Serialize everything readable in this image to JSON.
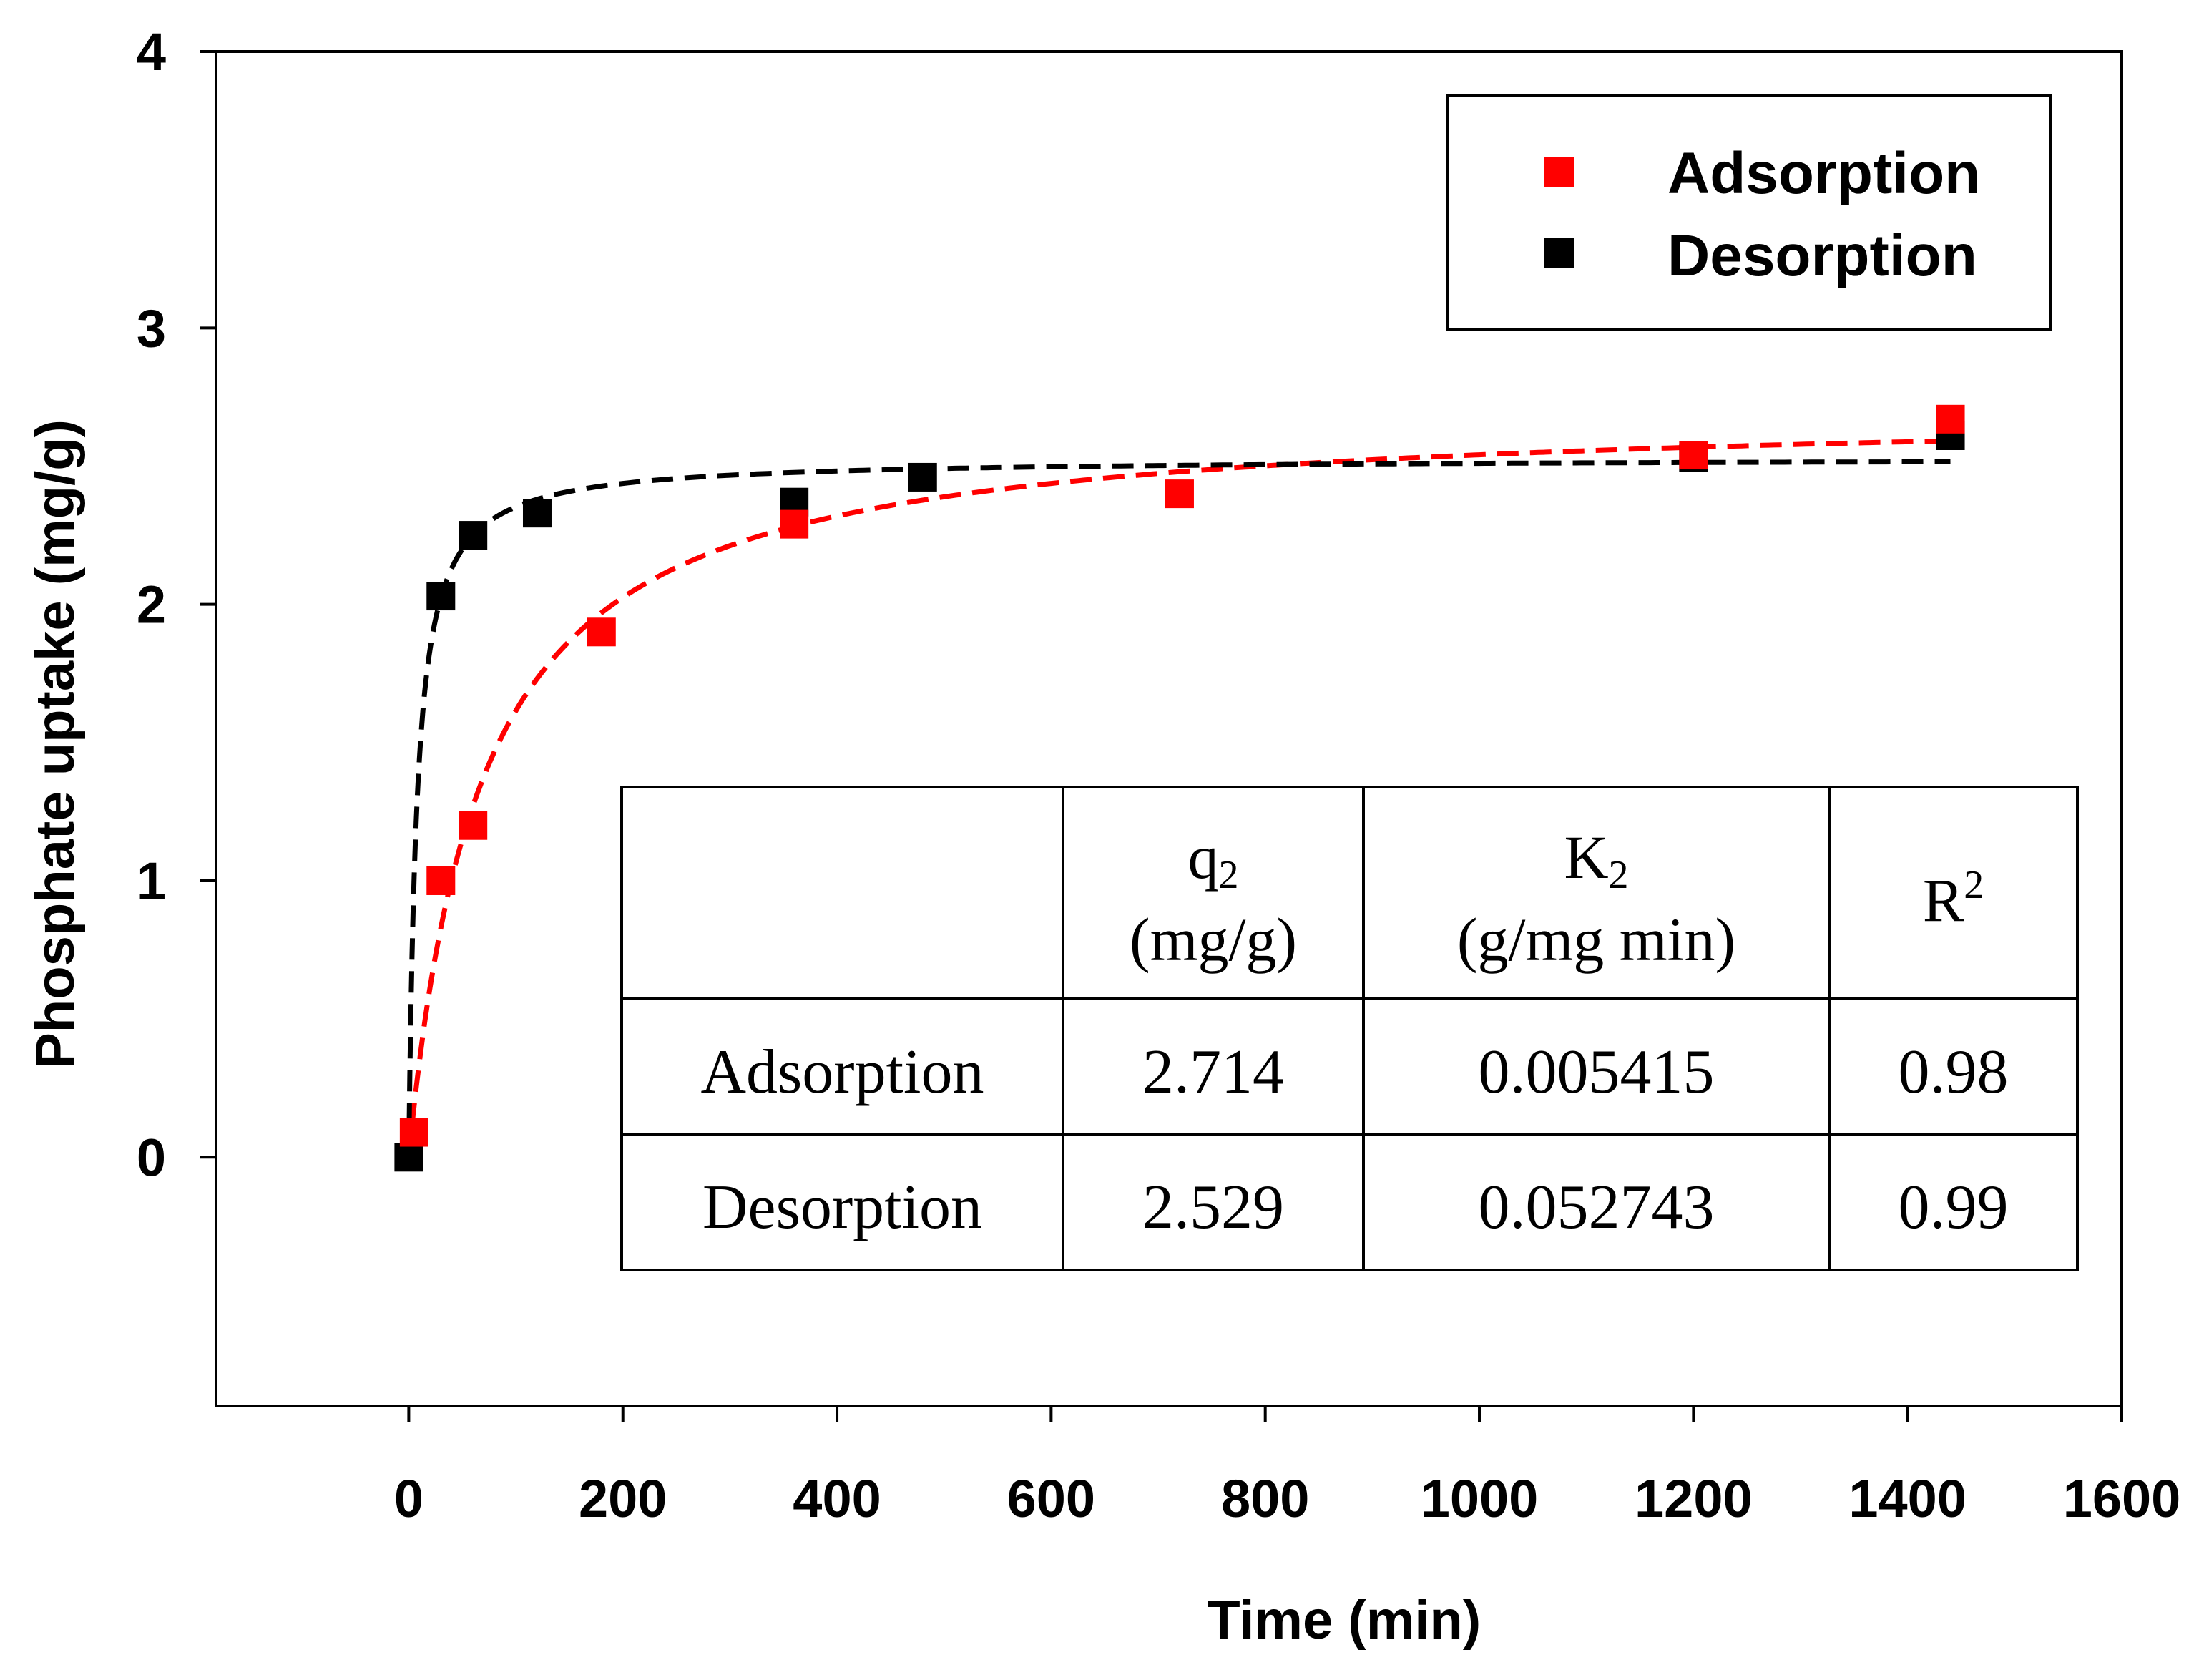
{
  "chart_data": {
    "type": "scatter",
    "title": "",
    "xlabel": "Time (min)",
    "ylabel": "Phosphate uptake (mg/g)",
    "xlim": [
      -180,
      1600
    ],
    "ylim": [
      -0.9,
      4
    ],
    "xticks": [
      0,
      200,
      400,
      600,
      800,
      1000,
      1200,
      1400,
      1600
    ],
    "yticks": [
      0,
      1,
      2,
      3,
      4
    ],
    "legend_position": "top-right",
    "series": [
      {
        "name": "Adsorption",
        "color": "#ff0000",
        "marker": "square",
        "x": [
          5,
          30,
          60,
          180,
          360,
          720,
          1200,
          1440
        ],
        "y": [
          0.09,
          1.0,
          1.2,
          1.9,
          2.29,
          2.4,
          2.54,
          2.67
        ],
        "fit": {
          "model": "pseudo-second-order",
          "q2": 2.714,
          "k2": 0.005415,
          "line": "dashed"
        }
      },
      {
        "name": "Desorption",
        "color": "#000000",
        "marker": "square",
        "x": [
          0,
          30,
          60,
          120,
          360,
          480,
          1200,
          1440
        ],
        "y": [
          0.0,
          2.03,
          2.25,
          2.33,
          2.37,
          2.46,
          2.53,
          2.61
        ],
        "fit": {
          "model": "pseudo-second-order",
          "q2": 2.529,
          "k2": 0.052743,
          "line": "dashed"
        }
      }
    ],
    "table": {
      "headers": [
        {
          "main": "",
          "sub": "",
          "sup": "",
          "unit": ""
        },
        {
          "main": "q",
          "sub": "2",
          "sup": "",
          "unit": "(mg/g)"
        },
        {
          "main": "K",
          "sub": "2",
          "sup": "",
          "unit": "(g/mg min)"
        },
        {
          "main": "R",
          "sub": "",
          "sup": "2",
          "unit": ""
        }
      ],
      "rows": [
        [
          "Adsorption",
          "2.714",
          "0.005415",
          "0.98"
        ],
        [
          "Desorption",
          "2.529",
          "0.052743",
          "0.99"
        ]
      ]
    }
  }
}
